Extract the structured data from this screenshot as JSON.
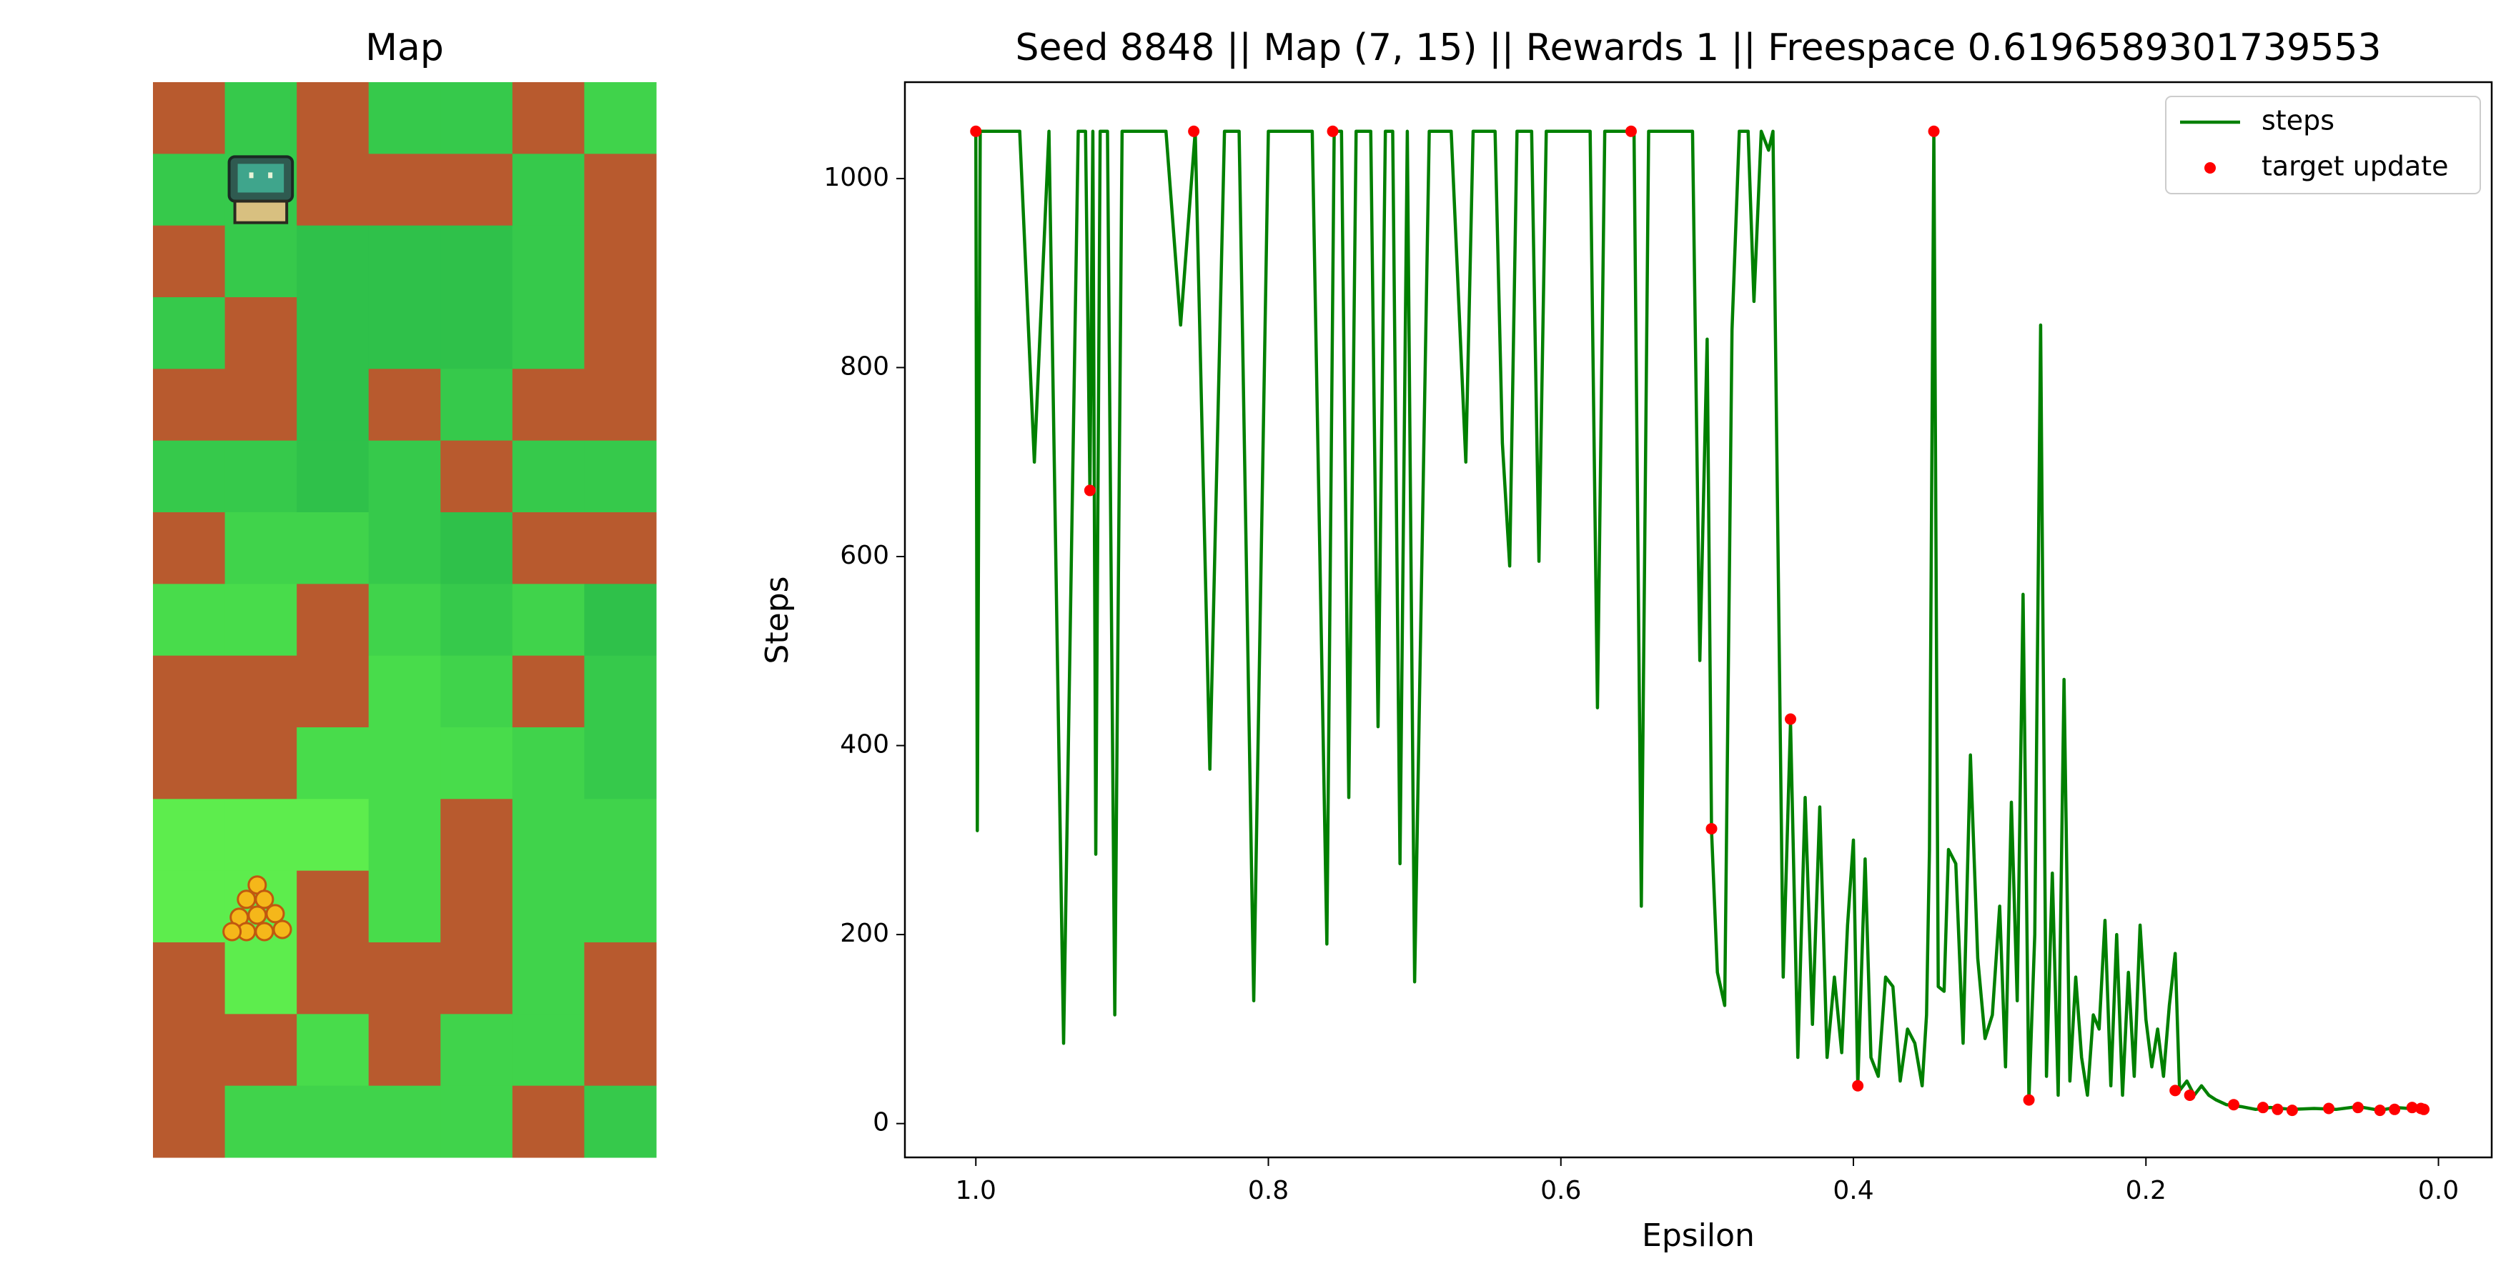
{
  "chart_data": [
    {
      "type": "map",
      "title": "Map",
      "cells": [
        [
          "#b85a2e",
          "#36c94b",
          "#b85a2e",
          "#36c94b",
          "#36c94b",
          "#b85a2e",
          "#40d34b"
        ],
        [
          "#36c94b",
          "#36c94b",
          "#b85a2e",
          "#b85a2e",
          "#b85a2e",
          "#36c94b",
          "#b85a2e"
        ],
        [
          "#b85a2e",
          "#36c94b",
          "#2fc14a",
          "#2fc14a",
          "#2fc14a",
          "#36c94b",
          "#b85a2e"
        ],
        [
          "#36c94b",
          "#b85a2e",
          "#2fc14a",
          "#2fc14a",
          "#2fc14a",
          "#36c94b",
          "#b85a2e"
        ],
        [
          "#b85a2e",
          "#b85a2e",
          "#2fc14a",
          "#b85a2e",
          "#36c94b",
          "#b85a2e",
          "#b85a2e"
        ],
        [
          "#36c94b",
          "#36c94b",
          "#2fc14a",
          "#36c94b",
          "#b85a2e",
          "#36c94b",
          "#36c94b"
        ],
        [
          "#b85a2e",
          "#40d34b",
          "#40d34b",
          "#36c94b",
          "#2fc14a",
          "#b85a2e",
          "#b85a2e"
        ],
        [
          "#48dc4b",
          "#48dc4b",
          "#b85a2e",
          "#40d34b",
          "#36c94b",
          "#40d34b",
          "#2fc14a"
        ],
        [
          "#b85a2e",
          "#b85a2e",
          "#b85a2e",
          "#48dc4b",
          "#40d34b",
          "#b85a2e",
          "#36c94b"
        ],
        [
          "#b85a2e",
          "#b85a2e",
          "#48dc4b",
          "#48dc4b",
          "#48dc4b",
          "#40d34b",
          "#36c94b"
        ],
        [
          "#5ded4d",
          "#5ded4d",
          "#5ded4d",
          "#48dc4b",
          "#b85a2e",
          "#40d34b",
          "#40d34b"
        ],
        [
          "#5ded4d",
          "#5ded4d",
          "#b85a2e",
          "#48dc4b",
          "#b85a2e",
          "#40d34b",
          "#40d34b"
        ],
        [
          "#b85a2e",
          "#5ded4d",
          "#b85a2e",
          "#b85a2e",
          "#b85a2e",
          "#40d34b",
          "#b85a2e"
        ],
        [
          "#b85a2e",
          "#b85a2e",
          "#48dc4b",
          "#b85a2e",
          "#40d34b",
          "#40d34b",
          "#b85a2e"
        ],
        [
          "#b85a2e",
          "#40d34b",
          "#40d34b",
          "#40d34b",
          "#40d34b",
          "#b85a2e",
          "#36c94b"
        ]
      ],
      "agent": [
        1,
        1
      ],
      "goal": [
        11,
        1
      ]
    },
    {
      "type": "line",
      "title": "Seed 8848 || Map (7, 15) || Rewards 1 || Freespace 0.6196589301739553",
      "x_label": "Epsilon",
      "y_label": "Steps",
      "xlim": [
        1.0485,
        -0.0364
      ],
      "ylim": [
        -35.8,
        1102
      ],
      "xticks": [
        {
          "value": 1,
          "label": "1.0"
        },
        0.8,
        0.6,
        0.4,
        0.2,
        {
          "value": 0,
          "label": "0.0"
        }
      ],
      "yticks": [
        0,
        200,
        400,
        600,
        800,
        1000
      ],
      "legend": "upper right",
      "series": [
        {
          "name": "steps",
          "color": "#008000",
          "type": "line",
          "x": [
            1.0,
            0.999,
            0.997,
            0.97,
            0.96,
            0.95,
            0.94,
            0.93,
            0.925,
            0.922,
            0.92,
            0.918,
            0.915,
            0.91,
            0.905,
            0.9,
            0.87,
            0.86,
            0.85,
            0.84,
            0.83,
            0.82,
            0.81,
            0.8,
            0.77,
            0.76,
            0.755,
            0.75,
            0.745,
            0.74,
            0.73,
            0.725,
            0.72,
            0.715,
            0.71,
            0.705,
            0.7,
            0.69,
            0.675,
            0.665,
            0.66,
            0.645,
            0.64,
            0.635,
            0.63,
            0.62,
            0.615,
            0.61,
            0.58,
            0.575,
            0.57,
            0.555,
            0.55,
            0.545,
            0.54,
            0.51,
            0.505,
            0.5,
            0.497,
            0.493,
            0.488,
            0.483,
            0.478,
            0.472,
            0.468,
            0.463,
            0.458,
            0.455,
            0.448,
            0.443,
            0.438,
            0.433,
            0.428,
            0.423,
            0.418,
            0.413,
            0.408,
            0.404,
            0.4,
            0.397,
            0.392,
            0.388,
            0.383,
            0.378,
            0.373,
            0.368,
            0.363,
            0.358,
            0.353,
            0.35,
            0.348,
            0.345,
            0.342,
            0.338,
            0.335,
            0.33,
            0.325,
            0.32,
            0.315,
            0.31,
            0.305,
            0.3,
            0.296,
            0.292,
            0.288,
            0.284,
            0.28,
            0.276,
            0.272,
            0.268,
            0.264,
            0.26,
            0.256,
            0.252,
            0.248,
            0.244,
            0.24,
            0.236,
            0.232,
            0.228,
            0.224,
            0.22,
            0.216,
            0.212,
            0.208,
            0.204,
            0.2,
            0.196,
            0.192,
            0.188,
            0.184,
            0.18,
            0.177,
            0.172,
            0.167,
            0.162,
            0.157,
            0.152,
            0.145,
            0.135,
            0.125,
            0.115,
            0.1,
            0.085,
            0.07,
            0.055,
            0.04,
            0.03,
            0.02,
            0.01
          ],
          "values": [
            1050,
            310,
            1050,
            1050,
            700,
            1050,
            85,
            1050,
            1050,
            670,
            1050,
            285,
            1050,
            1050,
            115,
            1050,
            1050,
            845,
            1050,
            375,
            1050,
            1050,
            130,
            1050,
            1050,
            190,
            1050,
            1050,
            345,
            1050,
            1050,
            420,
            1050,
            1050,
            275,
            1050,
            150,
            1050,
            1050,
            700,
            1050,
            1050,
            720,
            590,
            1050,
            1050,
            595,
            1050,
            1050,
            440,
            1050,
            1050,
            1050,
            230,
            1050,
            1050,
            490,
            830,
            310,
            160,
            125,
            840,
            1050,
            1050,
            870,
            1050,
            1030,
            1050,
            155,
            425,
            70,
            345,
            105,
            335,
            70,
            155,
            75,
            210,
            300,
            40,
            280,
            70,
            50,
            155,
            145,
            45,
            100,
            85,
            40,
            115,
            290,
            1050,
            145,
            140,
            290,
            275,
            85,
            390,
            175,
            90,
            115,
            230,
            60,
            340,
            130,
            560,
            25,
            200,
            845,
            50,
            265,
            30,
            470,
            45,
            155,
            70,
            30,
            115,
            100,
            215,
            40,
            200,
            30,
            160,
            50,
            210,
            110,
            60,
            100,
            50,
            125,
            180,
            35,
            45,
            30,
            40,
            30,
            25,
            20,
            18,
            15,
            17,
            15,
            16,
            15,
            18,
            14,
            17,
            16,
            15
          ]
        },
        {
          "name": "target update",
          "color": "#ff0000",
          "type": "scatter",
          "x": [
            1.0,
            0.922,
            0.851,
            0.756,
            0.552,
            0.497,
            0.443,
            0.397,
            0.345,
            0.28,
            0.18,
            0.17,
            0.14,
            0.12,
            0.11,
            0.1,
            0.075,
            0.055,
            0.04,
            0.03,
            0.018,
            0.012,
            0.01
          ],
          "values": [
            1050,
            670,
            1050,
            1050,
            1050,
            312,
            428,
            40,
            1050,
            25,
            35,
            30,
            20,
            17,
            15,
            14,
            16,
            17,
            14,
            15,
            17,
            16,
            15
          ]
        }
      ]
    }
  ]
}
